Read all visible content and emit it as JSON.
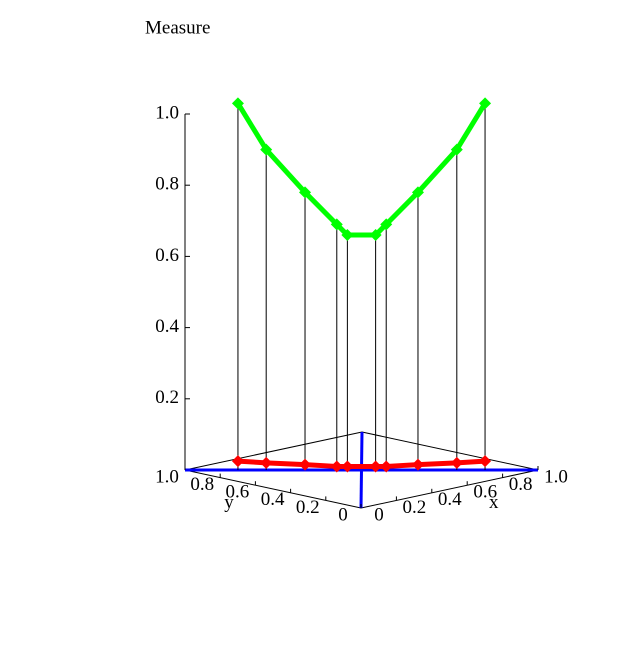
{
  "chart_data": {
    "type": "line3d",
    "title": "Measure",
    "x": [
      0.15,
      0.23,
      0.34,
      0.43,
      0.46,
      0.54,
      0.57,
      0.66,
      0.77,
      0.85
    ],
    "y": [
      0.85,
      0.77,
      0.66,
      0.57,
      0.54,
      0.46,
      0.43,
      0.34,
      0.23,
      0.15
    ],
    "series": [
      {
        "color": "#00ff00",
        "values": [
          1.03,
          0.9,
          0.78,
          0.69,
          0.66,
          0.66,
          0.69,
          0.78,
          0.9,
          1.03
        ]
      },
      {
        "color": "#ff0000",
        "values": [
          0.025,
          0.02,
          0.015,
          0.01,
          0.01,
          0.01,
          0.01,
          0.015,
          0.02,
          0.025
        ]
      }
    ],
    "stems": true,
    "xlim": [
      0,
      1
    ],
    "ylim": [
      0,
      1
    ],
    "zlim": [
      0,
      1
    ],
    "xticks": [
      0,
      0.2,
      0.4,
      0.6,
      0.8,
      {
        "value": 1,
        "label": "1.0"
      }
    ],
    "yticks": [
      0,
      0.2,
      0.4,
      0.6,
      0.8,
      {
        "value": 1,
        "label": "1.0"
      }
    ],
    "zticks": [
      0.2,
      0.4,
      0.6,
      0.8,
      {
        "value": 1,
        "label": "1.0"
      }
    ],
    "xlabel": "x",
    "ylabel": "y"
  }
}
